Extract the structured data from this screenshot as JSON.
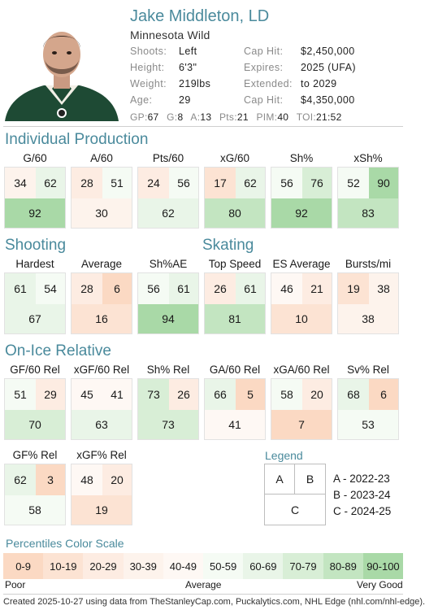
{
  "player": {
    "name": "Jake Middleton, LD",
    "team": "Minnesota Wild",
    "info_left": [
      {
        "label": "Shoots:",
        "value": "Left"
      },
      {
        "label": "Height:",
        "value": "6'3\""
      },
      {
        "label": "Weight:",
        "value": "219lbs"
      },
      {
        "label": "Age:",
        "value": "29"
      }
    ],
    "info_right": [
      {
        "label": "Cap Hit:",
        "value": "$2,450,000"
      },
      {
        "label": "Expires:",
        "value": "2025 (UFA)"
      },
      {
        "label": "Extended:",
        "value": "to 2029"
      },
      {
        "label": "Cap Hit:",
        "value": "$4,350,000"
      }
    ],
    "statline": [
      {
        "label": "GP:",
        "value": "67"
      },
      {
        "label": "G:",
        "value": "8"
      },
      {
        "label": "A:",
        "value": "13"
      },
      {
        "label": "Pts:",
        "value": "21"
      },
      {
        "label": "PIM:",
        "value": "40"
      },
      {
        "label": "TOI:",
        "value": "21:52"
      }
    ]
  },
  "sections": {
    "individual": {
      "title": "Individual Production"
    },
    "shooting": {
      "title": "Shooting"
    },
    "skating": {
      "title": "Skating"
    },
    "onice": {
      "title": "On-Ice Relative"
    }
  },
  "cards": {
    "individual": [
      {
        "label": "G/60",
        "a": 34,
        "b": 62,
        "c": 92
      },
      {
        "label": "A/60",
        "a": 28,
        "b": 51,
        "c": 30
      },
      {
        "label": "Pts/60",
        "a": 24,
        "b": 56,
        "c": 62
      },
      {
        "label": "xG/60",
        "a": 17,
        "b": 62,
        "c": 80
      },
      {
        "label": "Sh%",
        "a": 56,
        "b": 76,
        "c": 92
      },
      {
        "label": "xSh%",
        "a": 52,
        "b": 90,
        "c": 83
      }
    ],
    "shooting_skating": [
      {
        "label": "Hardest",
        "a": 61,
        "b": 54,
        "c": 67
      },
      {
        "label": "Average",
        "a": 28,
        "b": 6,
        "c": 16
      },
      {
        "label": "Sh%AE",
        "a": 56,
        "b": 61,
        "c": 94
      },
      {
        "label": "Top Speed",
        "a": 26,
        "b": 61,
        "c": 81
      },
      {
        "label": "ES Average",
        "a": 46,
        "b": 21,
        "c": 10
      },
      {
        "label": "Bursts/mi",
        "a": 19,
        "b": 38,
        "c": 38
      }
    ],
    "onice": [
      {
        "label": "GF/60 Rel",
        "a": 51,
        "b": 29,
        "c": 70
      },
      {
        "label": "xGF/60 Rel",
        "a": 45,
        "b": 41,
        "c": 63
      },
      {
        "label": "Sh% Rel",
        "a": 73,
        "b": 26,
        "c": 73
      },
      {
        "label": "GA/60 Rel",
        "a": 66,
        "b": 5,
        "c": 41
      },
      {
        "label": "xGA/60 Rel",
        "a": 58,
        "b": 20,
        "c": 7
      },
      {
        "label": "Sv% Rel",
        "a": 68,
        "b": 6,
        "c": 53
      }
    ],
    "onice2": [
      {
        "label": "GF% Rel",
        "a": 62,
        "b": 3,
        "c": 58
      },
      {
        "label": "xGF% Rel",
        "a": 48,
        "b": 20,
        "c": 19
      }
    ]
  },
  "legend": {
    "title": "Legend",
    "a": "A",
    "b": "B",
    "c": "C",
    "lines": [
      "A - 2022-23",
      "B - 2023-24",
      "C - 2024-25"
    ]
  },
  "scale": {
    "title": "Percentiles Color Scale",
    "segments": [
      "0-9",
      "10-19",
      "20-29",
      "30-39",
      "40-49",
      "50-59",
      "60-69",
      "70-79",
      "80-89",
      "90-100"
    ],
    "colors": [
      "#fbd9c3",
      "#fce3d3",
      "#fdece2",
      "#fdf3ec",
      "#fef8f4",
      "#f5fbf4",
      "#e9f5e8",
      "#d8eed6",
      "#c3e5c1",
      "#a9d9a7"
    ],
    "low_label": "Poor",
    "mid_label": "Average",
    "high_label": "Very Good"
  },
  "footer": "Created 2025-10-27 using data from TheStanleyCap.com, Puckalytics.com, NHL Edge (nhl.com/nhl-edge)."
}
